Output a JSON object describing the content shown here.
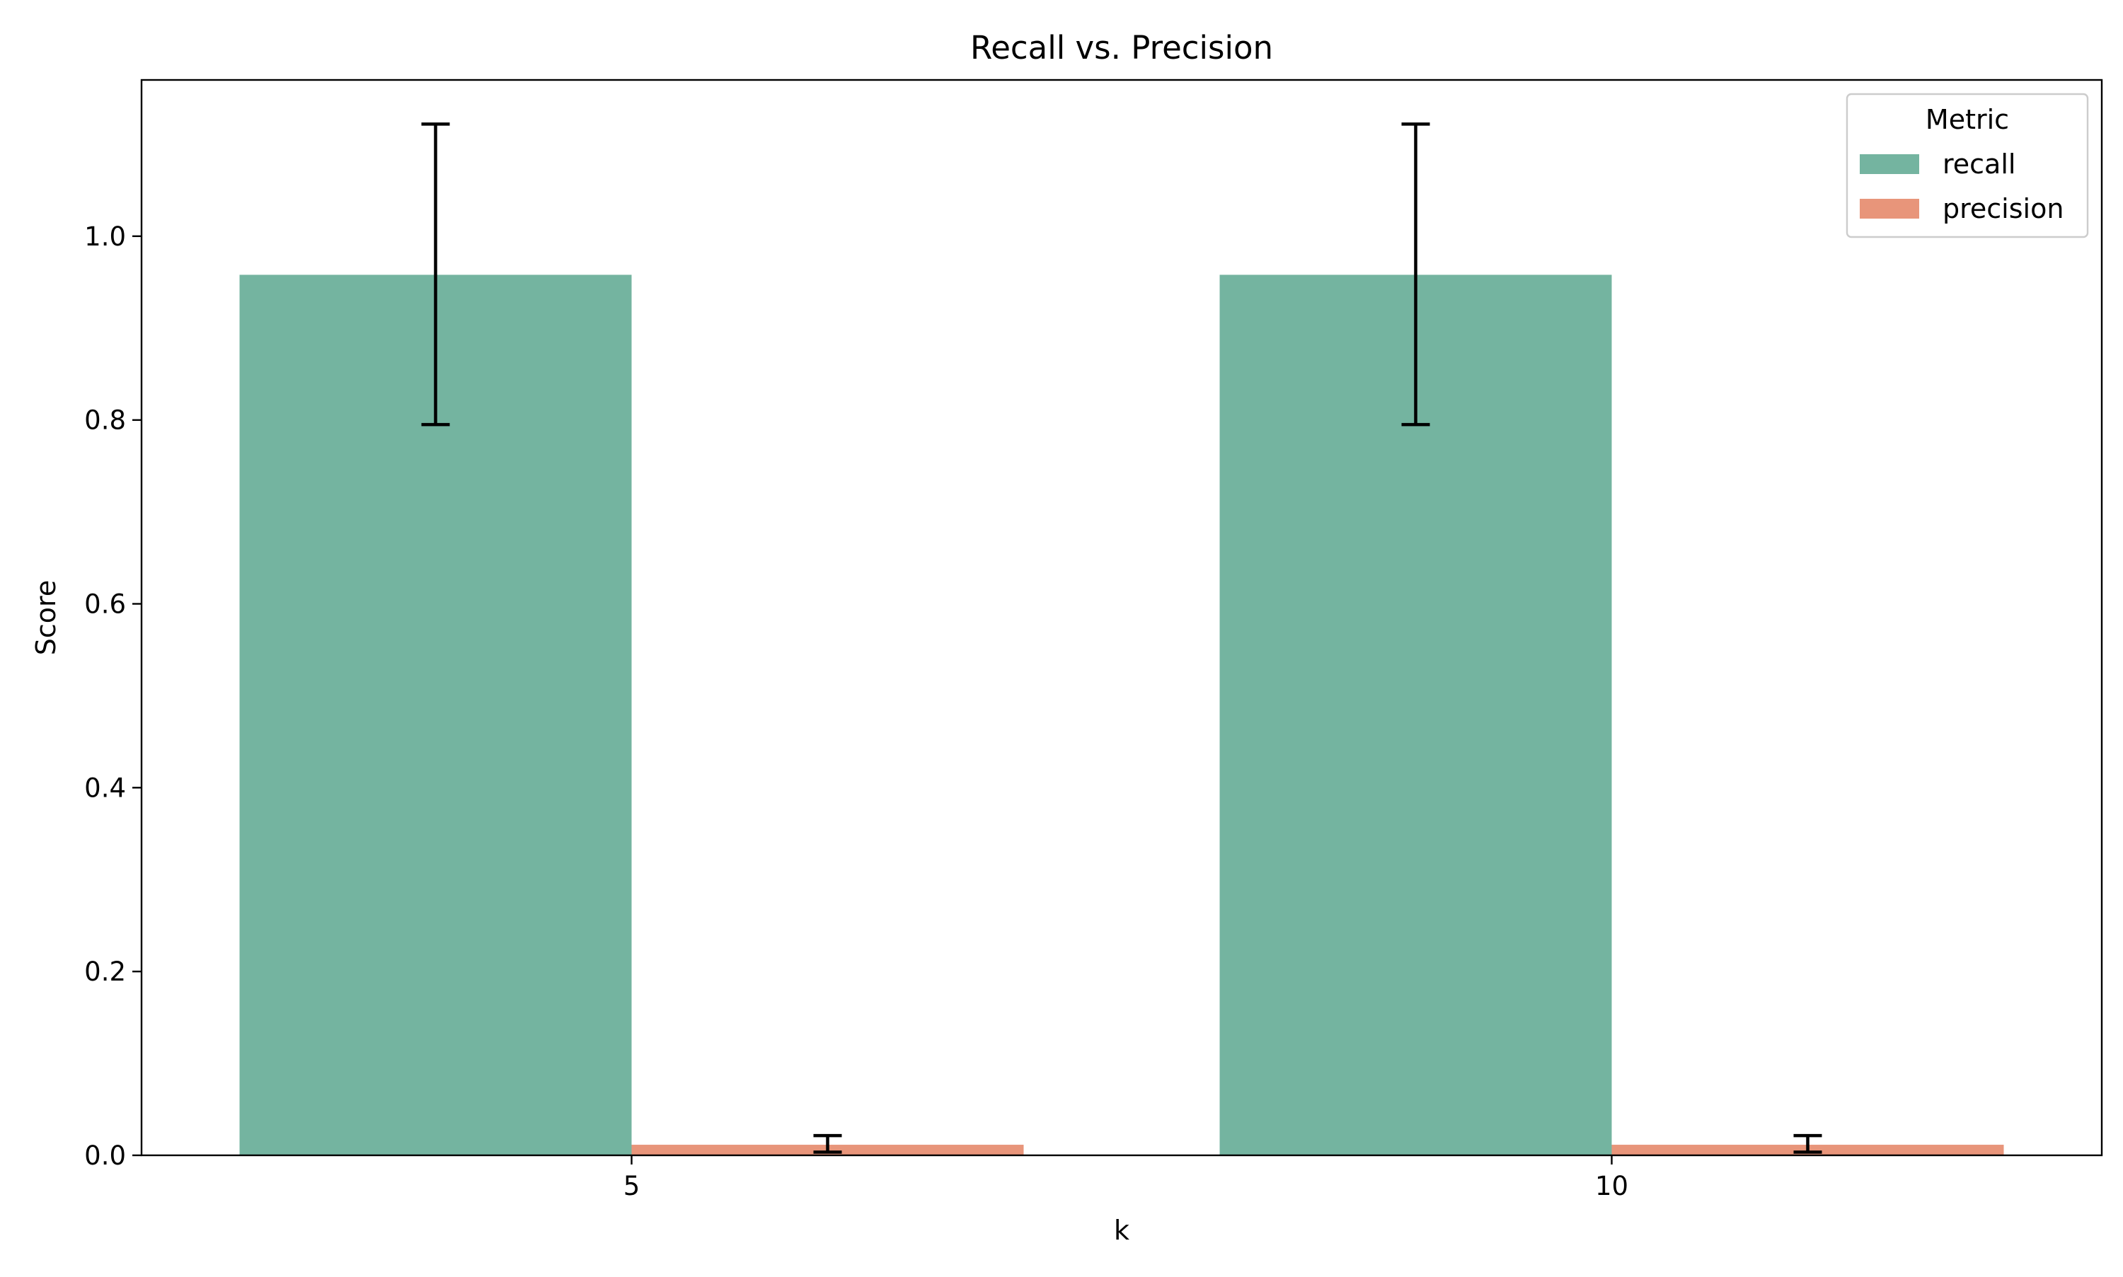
{
  "chart_data": {
    "type": "bar",
    "title": "Recall vs. Precision",
    "xlabel": "k",
    "ylabel": "Score",
    "categories": [
      "5",
      "10"
    ],
    "ylim": [
      0,
      1.17
    ],
    "yticks": [
      0.0,
      0.2,
      0.4,
      0.6,
      0.8,
      1.0
    ],
    "ytick_labels": [
      "0.0",
      "0.2",
      "0.4",
      "0.6",
      "0.8",
      "1.0"
    ],
    "grid": false,
    "legend": {
      "title": "Metric",
      "placement": "top-right"
    },
    "series": [
      {
        "name": "recall",
        "color": "#74b4a0",
        "values": [
          0.958,
          0.958
        ],
        "error_low": [
          0.795,
          0.795
        ],
        "error_high": [
          1.122,
          1.122
        ]
      },
      {
        "name": "precision",
        "color": "#e8957a",
        "values": [
          0.0115,
          0.0115
        ],
        "error_low": [
          0.0035,
          0.0035
        ],
        "error_high": [
          0.0215,
          0.0215
        ]
      }
    ]
  }
}
